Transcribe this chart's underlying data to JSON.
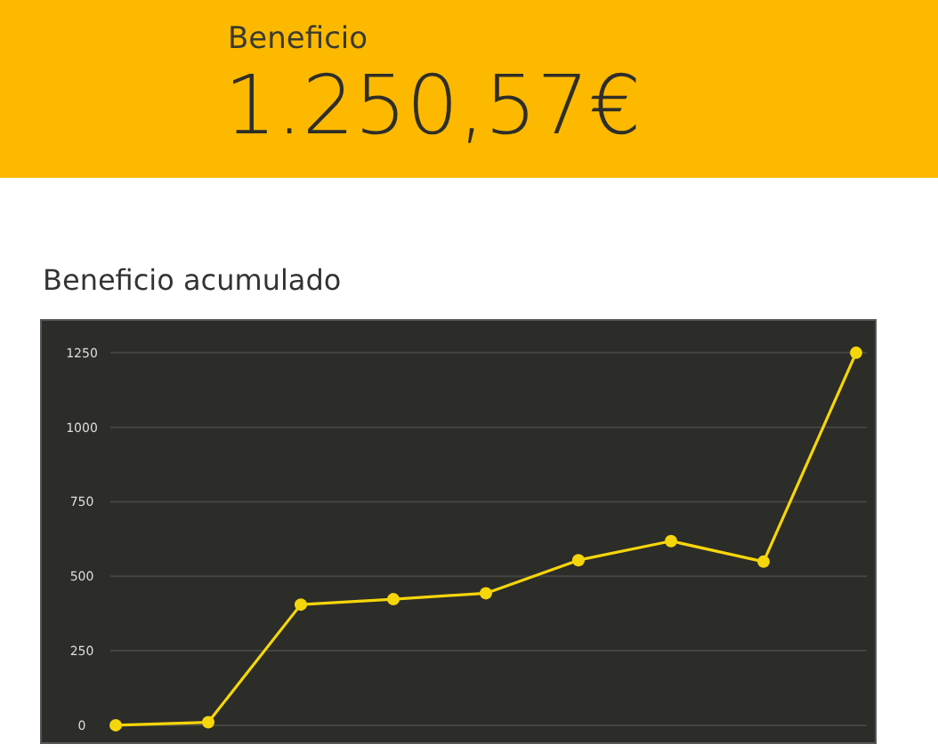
{
  "chart_data": [
    {
      "type": "other",
      "title": "Beneficio",
      "annotations": [
        "1.250,57€"
      ]
    },
    {
      "type": "line",
      "title": "Beneficio acumulado",
      "categories": [
        null,
        null,
        null,
        null,
        null,
        null,
        null,
        null,
        null
      ],
      "series": [
        {
          "color": "#f5d60a",
          "values": [
            0,
            10,
            405,
            423,
            443,
            554,
            618,
            549,
            1250
          ]
        }
      ],
      "ylim": [
        -60,
        1360
      ],
      "yticks": [
        0,
        250,
        500,
        750,
        1000,
        1250
      ],
      "grid": "y",
      "marker": "circle",
      "line_style": "solid"
    }
  ]
}
